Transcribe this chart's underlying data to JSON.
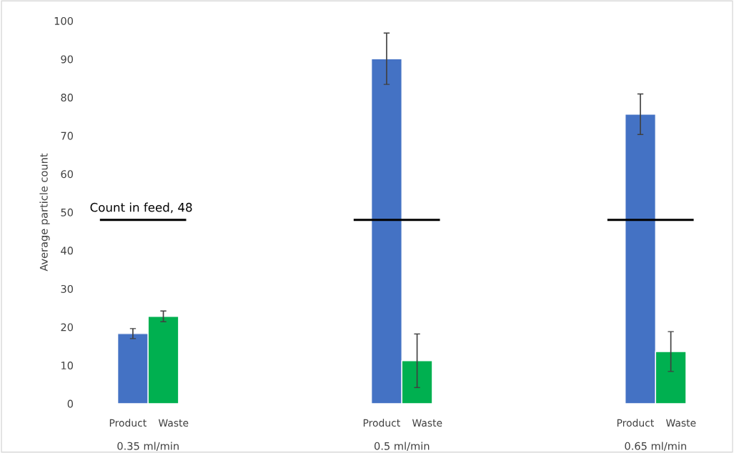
{
  "chart_data": {
    "type": "bar",
    "ylabel": "Average particle count",
    "categories": [
      "0.35 ml/min",
      "0.5 ml/min",
      "0.65 ml/min"
    ],
    "series": [
      {
        "name": "Product",
        "color": "#4472c4",
        "values": [
          18.3,
          90.1,
          75.6
        ],
        "errors": [
          1.3,
          6.7,
          5.3
        ]
      },
      {
        "name": "Waste",
        "color": "#00b050",
        "values": [
          22.8,
          11.2,
          13.6
        ],
        "errors": [
          1.4,
          7,
          5.2
        ]
      }
    ],
    "ylim": [
      0,
      100
    ],
    "yticks": [
      0,
      10,
      20,
      30,
      40,
      50,
      60,
      70,
      80,
      90,
      100
    ],
    "grid": false,
    "legend": false,
    "ref_lines": [
      {
        "axis": "y",
        "value": 48,
        "label": "Count in feed, 48",
        "color": "#000000"
      }
    ]
  }
}
